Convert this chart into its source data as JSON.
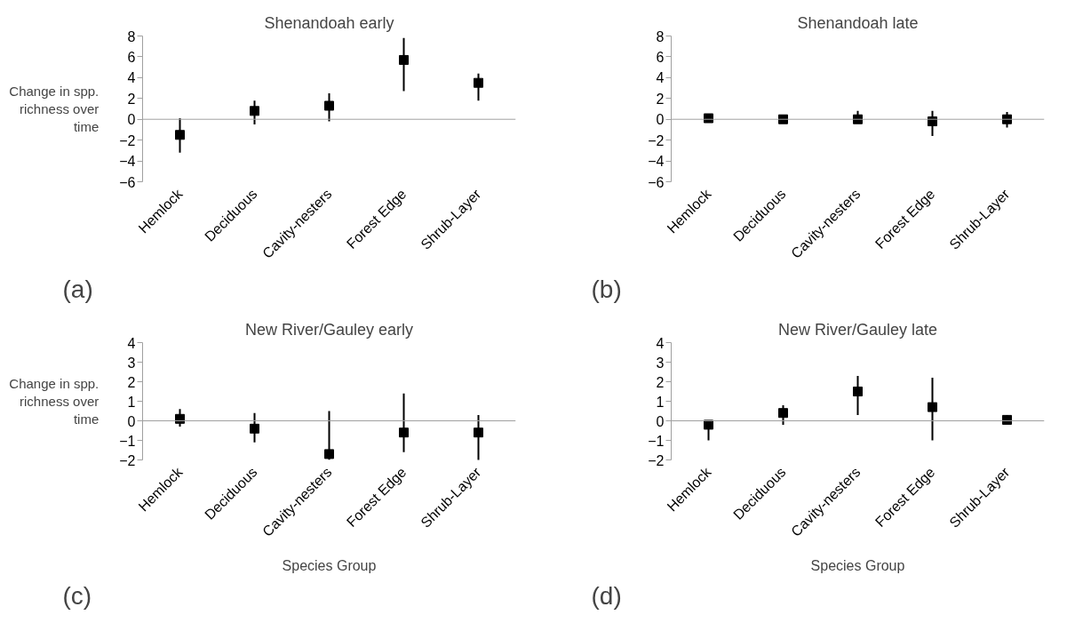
{
  "chart_data": [
    {
      "type": "scatter",
      "title": "Shenandoah early",
      "ylabel": "Change in spp. richness over time",
      "categories": [
        "Hemlock",
        "Deciduous",
        "Cavity-nesters",
        "Forest Edge",
        "Shrub-Layer"
      ],
      "marker": "square",
      "ylim": [
        -6,
        8
      ],
      "yticks": [
        -6,
        -4,
        -2,
        0,
        2,
        4,
        6,
        8
      ],
      "annotations": [
        "(a)"
      ],
      "series": [
        {
          "color": "#000000",
          "values": [
            -1.5,
            0.8,
            1.3,
            5.7,
            3.5
          ],
          "errors": [
            [
              -3.2,
              0.1
            ],
            [
              -0.5,
              1.8
            ],
            [
              -0.2,
              2.5
            ],
            [
              2.7,
              7.8
            ],
            [
              1.8,
              4.4
            ]
          ]
        }
      ]
    },
    {
      "type": "scatter",
      "title": "Shenandoah late",
      "categories": [
        "Hemlock",
        "Deciduous",
        "Cavity-nesters",
        "Forest Edge",
        "Shrub-Layer"
      ],
      "marker": "square",
      "ylim": [
        -6,
        8
      ],
      "yticks": [
        -6,
        -4,
        -2,
        0,
        2,
        4,
        6,
        8
      ],
      "annotations": [
        "(b)"
      ],
      "series": [
        {
          "color": "#000000",
          "values": [
            0.1,
            0.0,
            0.0,
            -0.2,
            0.0
          ],
          "errors": [
            null,
            [
              -0.4,
              0.2
            ],
            [
              -0.3,
              0.8
            ],
            [
              -1.6,
              0.8
            ],
            [
              -0.8,
              0.7
            ]
          ]
        }
      ]
    },
    {
      "type": "scatter",
      "title": "New River/Gauley early",
      "ylabel": "Change in spp. richness over time",
      "xlabel": "Species Group",
      "categories": [
        "Hemlock",
        "Deciduous",
        "Cavity-nesters",
        "Forest Edge",
        "Shrub-Layer"
      ],
      "marker": "square",
      "ylim": [
        -2,
        4
      ],
      "yticks": [
        -2,
        -1,
        0,
        1,
        2,
        3,
        4
      ],
      "annotations": [
        "(c)"
      ],
      "series": [
        {
          "color": "#000000",
          "values": [
            0.1,
            -0.4,
            -1.7,
            -0.6,
            -0.6
          ],
          "errors": [
            [
              -0.3,
              0.6
            ],
            [
              -1.1,
              0.4
            ],
            [
              -2.0,
              0.5
            ],
            [
              -1.6,
              1.4
            ],
            [
              -2.1,
              0.3
            ]
          ]
        }
      ]
    },
    {
      "type": "scatter",
      "title": "New River/Gauley late",
      "xlabel": "Species Group",
      "categories": [
        "Hemlock",
        "Deciduous",
        "Cavity-nesters",
        "Forest Edge",
        "Shrub-Layer"
      ],
      "marker": "square",
      "ylim": [
        -2,
        4
      ],
      "yticks": [
        -2,
        -1,
        0,
        1,
        2,
        3,
        4
      ],
      "annotations": [
        "(d)"
      ],
      "series": [
        {
          "color": "#000000",
          "values": [
            -0.2,
            0.4,
            1.5,
            0.7,
            0.05
          ],
          "errors": [
            [
              -1.0,
              0.0
            ],
            [
              -0.2,
              0.8
            ],
            [
              0.3,
              2.3
            ],
            [
              -1.0,
              2.2
            ],
            [
              -0.1,
              0.3
            ]
          ]
        }
      ]
    }
  ]
}
